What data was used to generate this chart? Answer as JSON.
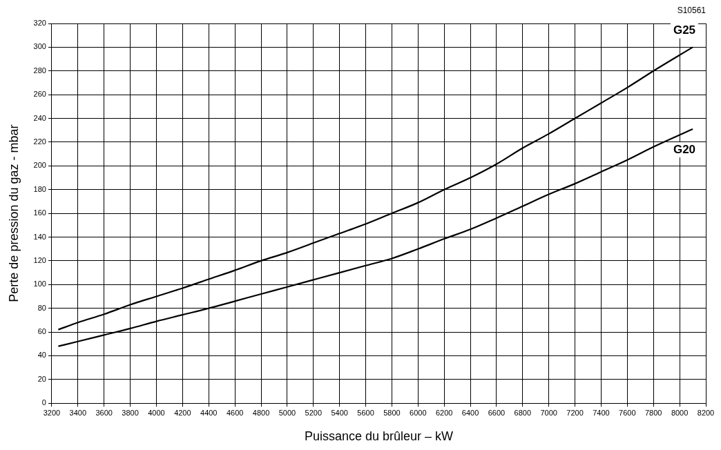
{
  "chart_data": {
    "type": "line",
    "xlabel": "Puissance du brûleur – kW",
    "ylabel": "Perte de pression du gaz - mbar",
    "annotations": [
      "S10561"
    ],
    "xlim": [
      3200,
      8200
    ],
    "xticks": [
      3200,
      3400,
      3600,
      3800,
      4000,
      4200,
      4400,
      4600,
      4800,
      5000,
      5200,
      5400,
      5600,
      5800,
      6000,
      6200,
      6400,
      6600,
      6800,
      7000,
      7200,
      7400,
      7600,
      7800,
      8000,
      8200
    ],
    "ylim": [
      0,
      320
    ],
    "yticks": [
      0,
      20,
      40,
      60,
      80,
      100,
      120,
      140,
      160,
      180,
      200,
      220,
      240,
      260,
      280,
      300,
      320
    ],
    "grid": true,
    "legend": false,
    "marker": "none",
    "line_style": "solid",
    "series": [
      {
        "name": "G25",
        "color": "#000000",
        "x": [
          3250,
          3400,
          3600,
          3800,
          4000,
          4200,
          4400,
          4600,
          4800,
          5000,
          5200,
          5400,
          5600,
          5800,
          6000,
          6200,
          6400,
          6600,
          6800,
          7000,
          7200,
          7400,
          7600,
          7800,
          8100
        ],
        "values": [
          62,
          68,
          75,
          83,
          90,
          97,
          104.5,
          112,
          120,
          127,
          135,
          143,
          151,
          160,
          169,
          180,
          190,
          201.5,
          215,
          227,
          240,
          253,
          266,
          280,
          300
        ]
      },
      {
        "name": "G20",
        "color": "#000000",
        "x": [
          3250,
          3400,
          3600,
          3800,
          4000,
          4200,
          4400,
          4600,
          4800,
          5000,
          5200,
          5400,
          5600,
          5800,
          6000,
          6200,
          6400,
          6600,
          6800,
          7000,
          7200,
          7400,
          7600,
          7800,
          8100
        ],
        "values": [
          48,
          52,
          57.5,
          63,
          69,
          74.5,
          80,
          86,
          92,
          98,
          104,
          110,
          116,
          122,
          130,
          138.5,
          146.5,
          156,
          166,
          176,
          185,
          195,
          205,
          216,
          231
        ]
      }
    ]
  }
}
